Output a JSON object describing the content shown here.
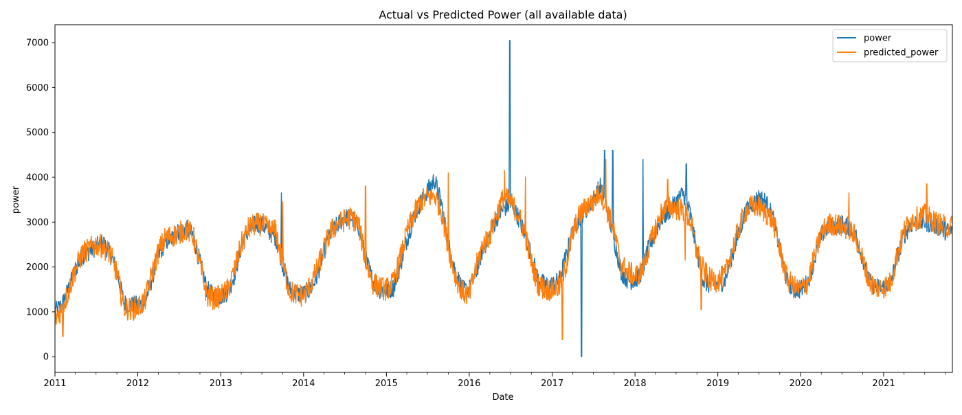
{
  "chart_data": {
    "type": "line",
    "title": "Actual vs Predicted Power (all available data)",
    "xlabel": "Date",
    "ylabel": "power",
    "xlim": [
      "2011-01-01",
      "2021-10-31"
    ],
    "ylim": [
      -350,
      7400
    ],
    "x_ticks": [
      "2011",
      "2012",
      "2013",
      "2014",
      "2015",
      "2016",
      "2017",
      "2018",
      "2019",
      "2020",
      "2021"
    ],
    "y_ticks": [
      0,
      1000,
      2000,
      3000,
      4000,
      5000,
      6000,
      7000
    ],
    "y_tick_labels": [
      "0",
      "1000",
      "2000",
      "3000",
      "4000",
      "5000",
      "6000",
      "7000"
    ],
    "legend_position": "top-right",
    "grid": false,
    "series": [
      {
        "name": "power",
        "color": "#1f77b4",
        "x": [
          "2011-01-01",
          "2011-02-01",
          "2011-03-01",
          "2011-04-01",
          "2011-05-01",
          "2011-06-01",
          "2011-07-01",
          "2011-08-01",
          "2011-09-01",
          "2011-10-01",
          "2011-11-01",
          "2011-12-01",
          "2012-01-01",
          "2012-02-01",
          "2012-03-01",
          "2012-04-01",
          "2012-05-01",
          "2012-06-01",
          "2012-07-01",
          "2012-08-01",
          "2012-09-01",
          "2012-10-01",
          "2012-11-01",
          "2012-12-01",
          "2013-01-01",
          "2013-02-01",
          "2013-03-01",
          "2013-04-01",
          "2013-05-01",
          "2013-06-01",
          "2013-07-01",
          "2013-08-01",
          "2013-09-01",
          "2013-10-01",
          "2013-11-01",
          "2013-12-01",
          "2014-01-01",
          "2014-02-01",
          "2014-03-01",
          "2014-04-01",
          "2014-05-01",
          "2014-06-01",
          "2014-07-01",
          "2014-08-01",
          "2014-09-01",
          "2014-10-01",
          "2014-11-01",
          "2014-12-01",
          "2015-01-01",
          "2015-02-01",
          "2015-03-01",
          "2015-04-01",
          "2015-05-01",
          "2015-06-01",
          "2015-07-01",
          "2015-08-01",
          "2015-09-01",
          "2015-10-01",
          "2015-11-01",
          "2015-12-01",
          "2016-01-01",
          "2016-02-01",
          "2016-03-01",
          "2016-04-01",
          "2016-05-01",
          "2016-06-01",
          "2016-07-01",
          "2016-08-01",
          "2016-09-01",
          "2016-10-01",
          "2016-11-01",
          "2016-12-01",
          "2017-01-01",
          "2017-02-01",
          "2017-03-01",
          "2017-04-01",
          "2017-05-01",
          "2017-06-01",
          "2017-07-01",
          "2017-08-01",
          "2017-09-01",
          "2017-10-01",
          "2017-11-01",
          "2017-12-01",
          "2018-01-01",
          "2018-02-01",
          "2018-03-01",
          "2018-04-01",
          "2018-05-01",
          "2018-06-01",
          "2018-07-01",
          "2018-08-01",
          "2018-09-01",
          "2018-10-01",
          "2018-11-01",
          "2018-12-01",
          "2019-01-01",
          "2019-02-01",
          "2019-03-01",
          "2019-04-01",
          "2019-05-01",
          "2019-06-01",
          "2019-07-01",
          "2019-08-01",
          "2019-09-01",
          "2019-10-01",
          "2019-11-01",
          "2019-12-01",
          "2020-01-01",
          "2020-02-01",
          "2020-03-01",
          "2020-04-01",
          "2020-05-01",
          "2020-06-01",
          "2020-07-01",
          "2020-08-01",
          "2020-09-01",
          "2020-10-01",
          "2020-11-01",
          "2020-12-01",
          "2021-01-01",
          "2021-02-01",
          "2021-03-01",
          "2021-04-01",
          "2021-05-01",
          "2021-06-01",
          "2021-07-01",
          "2021-08-01",
          "2021-09-01",
          "2021-10-01"
        ],
        "y": [
          1000,
          1150,
          1500,
          1950,
          2250,
          2350,
          2450,
          2550,
          2300,
          1900,
          1200,
          1150,
          1150,
          1200,
          1700,
          2250,
          2550,
          2650,
          2800,
          2850,
          2700,
          2100,
          1500,
          1350,
          1350,
          1450,
          1800,
          2450,
          2800,
          2950,
          2950,
          2800,
          2650,
          2050,
          1500,
          1400,
          1400,
          1500,
          1800,
          2350,
          2750,
          2950,
          3100,
          3100,
          2900,
          2200,
          1700,
          1500,
          1450,
          1550,
          2000,
          2600,
          3100,
          3450,
          3700,
          3950,
          3400,
          2500,
          1900,
          1500,
          1500,
          1900,
          2400,
          2700,
          3100,
          3300,
          3400,
          3150,
          2750,
          2250,
          1700,
          1600,
          1600,
          1700,
          2200,
          2800,
          3100,
          3300,
          3500,
          3800,
          3300,
          2600,
          1900,
          1700,
          1700,
          1900,
          2400,
          2800,
          3100,
          3250,
          3450,
          3650,
          3200,
          2300,
          1650,
          1600,
          1600,
          1700,
          2200,
          2700,
          3200,
          3400,
          3550,
          3450,
          3100,
          2400,
          1700,
          1500,
          1500,
          1650,
          2150,
          2700,
          2900,
          2900,
          2950,
          2900,
          2700,
          2200,
          1650,
          1550,
          1550,
          1650,
          2200,
          2700,
          2950,
          3000,
          3000,
          2950,
          2900,
          2800
        ],
        "spikes": [
          {
            "x": "2013-09-25",
            "y": 3650
          },
          {
            "x": "2016-06-28",
            "y": 7050
          },
          {
            "x": "2017-05-10",
            "y": 0
          },
          {
            "x": "2017-08-20",
            "y": 4600
          },
          {
            "x": "2017-09-25",
            "y": 4600
          },
          {
            "x": "2018-02-05",
            "y": 4400
          },
          {
            "x": "2018-08-15",
            "y": 4300
          }
        ]
      },
      {
        "name": "predicted_power",
        "color": "#ff7f0e",
        "x": [
          "2011-01-01",
          "2011-02-01",
          "2011-03-01",
          "2011-04-01",
          "2011-05-01",
          "2011-06-01",
          "2011-07-01",
          "2011-08-01",
          "2011-09-01",
          "2011-10-01",
          "2011-11-01",
          "2011-12-01",
          "2012-01-01",
          "2012-02-01",
          "2012-03-01",
          "2012-04-01",
          "2012-05-01",
          "2012-06-01",
          "2012-07-01",
          "2012-08-01",
          "2012-09-01",
          "2012-10-01",
          "2012-11-01",
          "2012-12-01",
          "2013-01-01",
          "2013-02-01",
          "2013-03-01",
          "2013-04-01",
          "2013-05-01",
          "2013-06-01",
          "2013-07-01",
          "2013-08-01",
          "2013-09-01",
          "2013-10-01",
          "2013-11-01",
          "2013-12-01",
          "2014-01-01",
          "2014-02-01",
          "2014-03-01",
          "2014-04-01",
          "2014-05-01",
          "2014-06-01",
          "2014-07-01",
          "2014-08-01",
          "2014-09-01",
          "2014-10-01",
          "2014-11-01",
          "2014-12-01",
          "2015-01-01",
          "2015-02-01",
          "2015-03-01",
          "2015-04-01",
          "2015-05-01",
          "2015-06-01",
          "2015-07-01",
          "2015-08-01",
          "2015-09-01",
          "2015-10-01",
          "2015-11-01",
          "2015-12-01",
          "2016-01-01",
          "2016-02-01",
          "2016-03-01",
          "2016-04-01",
          "2016-05-01",
          "2016-06-01",
          "2016-07-01",
          "2016-08-01",
          "2016-09-01",
          "2016-10-01",
          "2016-11-01",
          "2016-12-01",
          "2017-01-01",
          "2017-02-01",
          "2017-03-01",
          "2017-04-01",
          "2017-05-01",
          "2017-06-01",
          "2017-07-01",
          "2017-08-01",
          "2017-09-01",
          "2017-10-01",
          "2017-11-01",
          "2017-12-01",
          "2018-01-01",
          "2018-02-01",
          "2018-03-01",
          "2018-04-01",
          "2018-05-01",
          "2018-06-01",
          "2018-07-01",
          "2018-08-01",
          "2018-09-01",
          "2018-10-01",
          "2018-11-01",
          "2018-12-01",
          "2019-01-01",
          "2019-02-01",
          "2019-03-01",
          "2019-04-01",
          "2019-05-01",
          "2019-06-01",
          "2019-07-01",
          "2019-08-01",
          "2019-09-01",
          "2019-10-01",
          "2019-11-01",
          "2019-12-01",
          "2020-01-01",
          "2020-02-01",
          "2020-03-01",
          "2020-04-01",
          "2020-05-01",
          "2020-06-01",
          "2020-07-01",
          "2020-08-01",
          "2020-09-01",
          "2020-10-01",
          "2020-11-01",
          "2020-12-01",
          "2021-01-01",
          "2021-02-01",
          "2021-03-01",
          "2021-04-01",
          "2021-05-01",
          "2021-06-01",
          "2021-07-01",
          "2021-08-01",
          "2021-09-01",
          "2021-10-01"
        ],
        "y": [
          850,
          1050,
          1450,
          1950,
          2300,
          2400,
          2500,
          2450,
          2300,
          1850,
          1100,
          1050,
          1100,
          1250,
          1800,
          2350,
          2650,
          2700,
          2750,
          2850,
          2700,
          2050,
          1350,
          1300,
          1350,
          1500,
          1900,
          2500,
          2850,
          2950,
          2950,
          2850,
          2800,
          2050,
          1450,
          1400,
          1350,
          1600,
          1950,
          2400,
          2800,
          2950,
          3050,
          3100,
          2950,
          2150,
          1650,
          1550,
          1500,
          1650,
          2150,
          2750,
          3150,
          3450,
          3550,
          3600,
          3250,
          2450,
          1800,
          1450,
          1350,
          2000,
          2500,
          2700,
          3200,
          3550,
          3450,
          3200,
          2800,
          2100,
          1600,
          1500,
          1500,
          1550,
          2000,
          2750,
          3150,
          3350,
          3450,
          3700,
          3250,
          2750,
          2050,
          1900,
          1800,
          1900,
          2400,
          2850,
          3250,
          3350,
          3300,
          3250,
          3050,
          2350,
          1900,
          1700,
          1700,
          1800,
          2300,
          2800,
          3250,
          3350,
          3350,
          3200,
          3050,
          2400,
          1750,
          1550,
          1500,
          1650,
          2200,
          2750,
          2950,
          2950,
          2900,
          2850,
          2650,
          2150,
          1650,
          1550,
          1550,
          1650,
          2250,
          2800,
          3050,
          3100,
          3150,
          3050,
          2950,
          2900
        ],
        "spikes": [
          {
            "x": "2011-02-05",
            "y": 450
          },
          {
            "x": "2013-10-01",
            "y": 3450
          },
          {
            "x": "2014-10-01",
            "y": 3800
          },
          {
            "x": "2015-10-01",
            "y": 4100
          },
          {
            "x": "2016-06-05",
            "y": 4150
          },
          {
            "x": "2016-09-05",
            "y": 4000
          },
          {
            "x": "2017-02-15",
            "y": 380
          },
          {
            "x": "2017-08-25",
            "y": 4400
          },
          {
            "x": "2018-05-25",
            "y": 3950
          },
          {
            "x": "2018-08-10",
            "y": 2150
          },
          {
            "x": "2018-10-20",
            "y": 1050
          },
          {
            "x": "2020-08-01",
            "y": 3650
          },
          {
            "x": "2021-07-10",
            "y": 3850
          }
        ]
      }
    ]
  }
}
